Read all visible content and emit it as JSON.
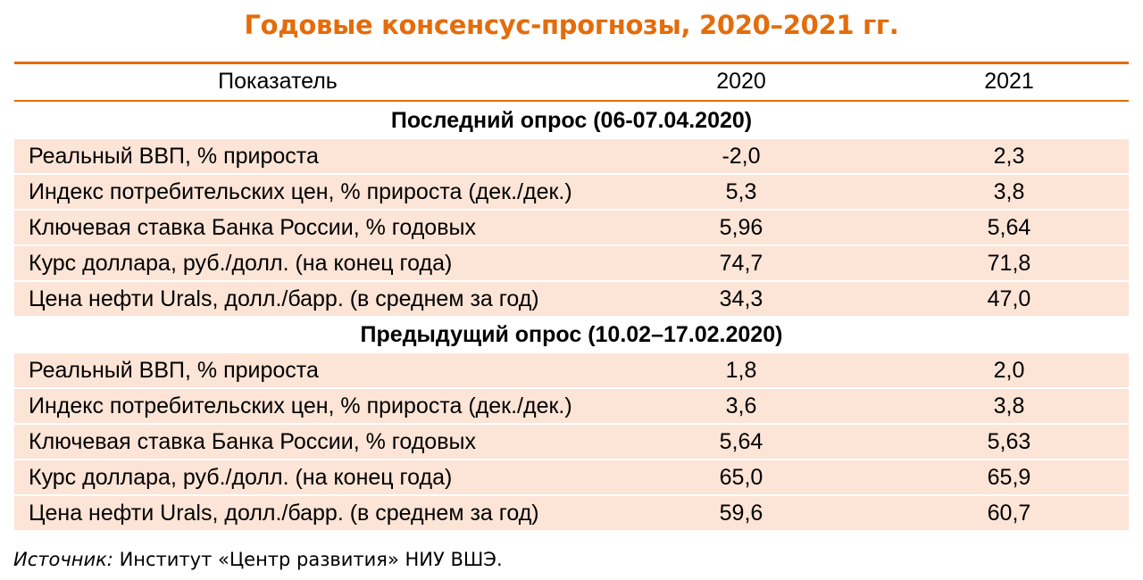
{
  "title": "Годовые консенсус-прогнозы, 2020–2021 гг.",
  "colors": {
    "accent": "#E46C0A",
    "row_fill": "#FCE4D6"
  },
  "table": {
    "header": {
      "indicator": "Показатель",
      "col1": "2020",
      "col2": "2021"
    },
    "sections": [
      {
        "title": "Последний опрос (06-07.04.2020)",
        "rows": [
          {
            "label": "Реальный ВВП, % прироста",
            "v2020": "-2,0",
            "v2021": "2,3"
          },
          {
            "label": "Индекс потребительских цен, % прироста (дек./дек.)",
            "v2020": "5,3",
            "v2021": "3,8"
          },
          {
            "label": "Ключевая ставка Банка России, % годовых",
            "v2020": "5,96",
            "v2021": "5,64"
          },
          {
            "label": "Курс доллара, руб./долл. (на конец года)",
            "v2020": "74,7",
            "v2021": "71,8"
          },
          {
            "label": "Цена нефти Urals, долл./барр. (в среднем за год)",
            "v2020": "34,3",
            "v2021": "47,0"
          }
        ]
      },
      {
        "title": "Предыдущий опрос (10.02–17.02.2020)",
        "rows": [
          {
            "label": "Реальный ВВП, % прироста",
            "v2020": "1,8",
            "v2021": "2,0"
          },
          {
            "label": "Индекс потребительских цен, % прироста (дек./дек.)",
            "v2020": "3,6",
            "v2021": "3,8"
          },
          {
            "label": "Ключевая ставка Банка России, % годовых",
            "v2020": "5,64",
            "v2021": "5,63"
          },
          {
            "label": "Курс доллара, руб./долл. (на конец года)",
            "v2020": "65,0",
            "v2021": "65,9"
          },
          {
            "label": "Цена нефти Urals, долл./барр. (в среднем за год)",
            "v2020": "59,6",
            "v2021": "60,7"
          }
        ]
      }
    ]
  },
  "source": {
    "label": "Источник:",
    "text": " Институт «Центр развития» НИУ ВШЭ."
  }
}
